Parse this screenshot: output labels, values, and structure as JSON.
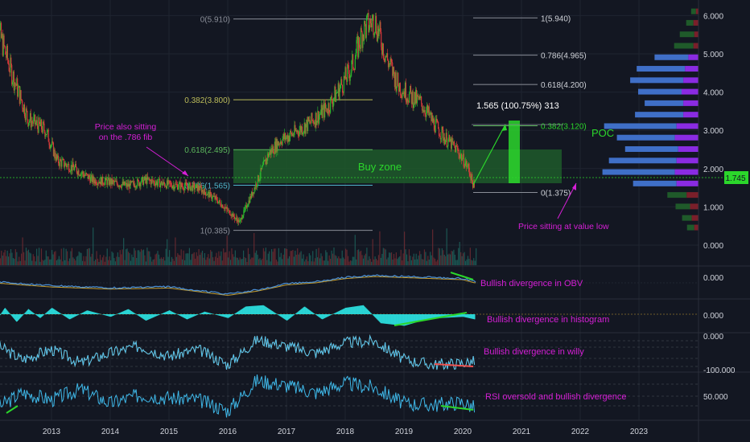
{
  "colors": {
    "background": "#131722",
    "grid": "#1f2430",
    "up": "#26a69a",
    "down": "#ef5350",
    "candle_up": "#2dbd2d",
    "candle_down": "#e03b3b",
    "fib_line": "#8a8e98",
    "fib_382": "#bdbd5a",
    "fib_618": "#5cb85c",
    "fib_786": "#4fb3c8",
    "buy_zone": "#1e5a2a",
    "annotation": "#d61fd6",
    "profile_blue": "#3f6fc7",
    "profile_purple": "#8a2be2",
    "profile_green": "#1f5a2a",
    "profile_red": "#7a1f2a",
    "current_price_bg": "#2bd62b",
    "axis_text": "#d1d4dc",
    "obv_line": "#4a8fd6",
    "macd_hist": "#2ad4d4",
    "willy_line": "#4fc3f7",
    "willy_signal": "#e0a030",
    "rsi_line": "#3fb8e8"
  },
  "chart_data": [
    {
      "type": "line",
      "name": "price-candles",
      "x": [
        2012.0,
        2012.3,
        2012.6,
        2012.9,
        2013.1,
        2013.4,
        2013.7,
        2014.0,
        2014.3,
        2014.6,
        2014.9,
        2015.2,
        2015.5,
        2015.8,
        2016.0,
        2016.2,
        2016.4,
        2016.7,
        2016.9,
        2017.1,
        2017.4,
        2017.7,
        2017.9,
        2018.1,
        2018.3,
        2018.5,
        2018.7,
        2018.9,
        2019.1,
        2019.3,
        2019.5,
        2019.7,
        2019.9,
        2020.1,
        2020.2
      ],
      "values": [
        6.1,
        4.6,
        3.3,
        3.0,
        2.2,
        2.0,
        1.7,
        1.65,
        1.55,
        1.7,
        1.6,
        1.55,
        1.5,
        1.2,
        0.9,
        0.6,
        1.3,
        2.4,
        2.75,
        2.9,
        3.2,
        3.6,
        4.1,
        4.6,
        5.6,
        5.9,
        4.9,
        4.2,
        3.9,
        3.7,
        3.2,
        2.8,
        2.5,
        2.0,
        1.45
      ],
      "ylim": [
        -0.3,
        6.3
      ],
      "y_ticks": [
        "6.000",
        "5.000",
        "4.000",
        "3.000",
        "2.000",
        "1.000",
        "0.000"
      ],
      "x_ticks": [
        "2013",
        "2014",
        "2015",
        "2016",
        "2017",
        "2018",
        "2019",
        "2020",
        "2021",
        "2022",
        "2023"
      ],
      "current_price": "1.745",
      "fib_levels": [
        {
          "label": "0(5.910)",
          "value": 5.91
        },
        {
          "label": "0.382(3.800)",
          "value": 3.8
        },
        {
          "label": "0.618(2.495)",
          "value": 2.495
        },
        {
          "label": "0.786(1.565)",
          "value": 1.565
        },
        {
          "label": "1(0.385)",
          "value": 0.385
        }
      ],
      "fib_projection": [
        {
          "label": "1(5.940)",
          "value": 5.94
        },
        {
          "label": "0.786(4.965)",
          "value": 4.965
        },
        {
          "label": "0.618(4.200)",
          "value": 4.2
        },
        {
          "label": "0.382(3.120)",
          "value": 3.12
        },
        {
          "label": "0(1.375)",
          "value": 1.375
        }
      ],
      "volume_profile": [
        {
          "price": 6.1,
          "up": 2,
          "down": 3
        },
        {
          "price": 5.8,
          "up": 3,
          "down": 6
        },
        {
          "price": 5.5,
          "up": 6,
          "down": 5
        },
        {
          "price": 5.2,
          "up": 8,
          "down": 6
        },
        {
          "price": 4.9,
          "up": 14,
          "down": 12
        },
        {
          "price": 4.6,
          "up": 20,
          "down": 16
        },
        {
          "price": 4.3,
          "up": 22,
          "down": 18
        },
        {
          "price": 4.0,
          "up": 18,
          "down": 20
        },
        {
          "price": 3.7,
          "up": 16,
          "down": 18
        },
        {
          "price": 3.4,
          "up": 20,
          "down": 18
        },
        {
          "price": 3.1,
          "up": 30,
          "down": 26
        },
        {
          "price": 2.8,
          "up": 24,
          "down": 28
        },
        {
          "price": 2.5,
          "up": 22,
          "down": 24
        },
        {
          "price": 2.2,
          "up": 28,
          "down": 26
        },
        {
          "price": 1.9,
          "up": 30,
          "down": 28
        },
        {
          "price": 1.6,
          "up": 18,
          "down": 26
        },
        {
          "price": 1.3,
          "up": 8,
          "down": 14
        },
        {
          "price": 1.0,
          "up": 6,
          "down": 10
        },
        {
          "price": 0.7,
          "up": 4,
          "down": 8
        },
        {
          "price": 0.45,
          "up": 3,
          "down": 5
        }
      ]
    },
    {
      "type": "line",
      "name": "obv",
      "y_ticks": [
        "0.000"
      ],
      "x": [
        2012.0,
        2013.0,
        2014.0,
        2015.0,
        2016.0,
        2016.5,
        2017.0,
        2017.5,
        2018.0,
        2018.5,
        2019.0,
        2019.5,
        2020.0,
        2020.2
      ],
      "values": [
        0.6,
        0.4,
        0.3,
        0.35,
        0.0,
        0.2,
        0.5,
        0.6,
        0.8,
        0.9,
        0.85,
        0.8,
        0.75,
        0.6
      ]
    },
    {
      "type": "bar",
      "name": "macd-histogram",
      "y_ticks": [
        "0.000"
      ],
      "x": [
        2012.0,
        2012.2,
        2012.4,
        2012.6,
        2012.8,
        2013.0,
        2013.3,
        2013.6,
        2014.0,
        2014.3,
        2014.6,
        2015.0,
        2015.3,
        2015.6,
        2016.0,
        2016.3,
        2016.6,
        2017.0,
        2017.3,
        2017.6,
        2018.0,
        2018.3,
        2018.6,
        2019.0,
        2019.3,
        2019.6,
        2020.0,
        2020.2
      ],
      "values": [
        -0.9,
        0.5,
        -0.6,
        0.4,
        -0.3,
        0.5,
        -0.4,
        0.3,
        -0.2,
        0.4,
        -0.5,
        0.3,
        -0.4,
        0.2,
        -0.3,
        0.6,
        0.7,
        -0.5,
        0.6,
        -0.4,
        0.5,
        0.7,
        -0.7,
        -0.9,
        -0.5,
        -0.3,
        -0.2,
        -0.4
      ]
    },
    {
      "type": "line",
      "name": "willy",
      "y_ticks": [
        "0.000",
        "-100.000"
      ],
      "x": [
        2012.0,
        2012.5,
        2013.0,
        2013.5,
        2014.0,
        2014.5,
        2015.0,
        2015.5,
        2016.0,
        2016.5,
        2017.0,
        2017.5,
        2018.0,
        2018.5,
        2019.0,
        2019.5,
        2020.0,
        2020.2
      ],
      "values": [
        -20,
        -70,
        -40,
        -80,
        -50,
        -30,
        -60,
        -40,
        -85,
        -10,
        -30,
        -50,
        -20,
        -15,
        -70,
        -85,
        -80,
        -75
      ]
    },
    {
      "type": "line",
      "name": "rsi",
      "y_ticks": [
        "50.000"
      ],
      "x": [
        2012.0,
        2012.5,
        2013.0,
        2013.5,
        2014.0,
        2014.5,
        2015.0,
        2015.5,
        2016.0,
        2016.5,
        2017.0,
        2017.5,
        2018.0,
        2018.5,
        2019.0,
        2019.5,
        2020.0,
        2020.2
      ],
      "values": [
        30,
        55,
        45,
        60,
        40,
        52,
        48,
        45,
        30,
        72,
        65,
        55,
        68,
        62,
        40,
        38,
        42,
        34
      ]
    }
  ],
  "annotations": {
    "price_fib": "Price also sitting\non the .786 fib",
    "buy_zone": "Buy zone",
    "projection": "1.565 (100.75%) 313",
    "poc": "POC",
    "value_low": "Price sitting at value low",
    "obv": "Bullish divergence in OBV",
    "histogram": "Bullish divergence in histogram",
    "willy": "Bullish divergence in willy",
    "rsi": "RSI oversold and bullish divergence"
  }
}
